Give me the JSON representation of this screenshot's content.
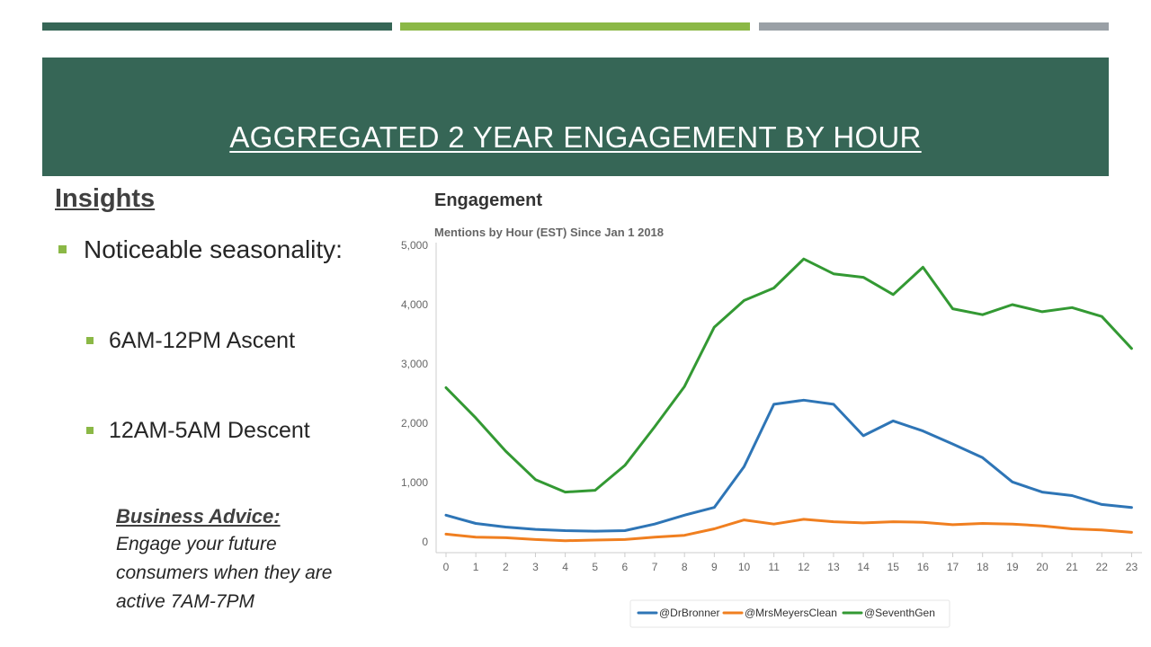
{
  "header": {
    "title": "AGGREGATED 2 YEAR ENGAGEMENT BY HOUR",
    "accent_colors": [
      "#366656",
      "#8bb846",
      "#9aa0a6"
    ]
  },
  "insights": {
    "heading": "Insights",
    "bullets": [
      {
        "text": "Noticeable seasonality:",
        "level": 1
      },
      {
        "text": "6AM-12PM Ascent",
        "level": 2
      },
      {
        "text": "12AM-5AM Descent",
        "level": 2
      }
    ],
    "advice": {
      "heading": "Business Advice:",
      "lines": [
        "Engage your future",
        "consumers when they are",
        "active 7AM-7PM"
      ]
    }
  },
  "chart_data": {
    "type": "line",
    "title": "Engagement",
    "subtitle": "Mentions by Hour (EST) Since Jan 1 2018",
    "xlabel": "",
    "ylabel": "",
    "x": [
      0,
      1,
      2,
      3,
      4,
      5,
      6,
      7,
      8,
      9,
      10,
      11,
      12,
      13,
      14,
      15,
      16,
      17,
      18,
      19,
      20,
      21,
      22,
      23
    ],
    "ylim": [
      0,
      5000
    ],
    "yticks": [
      0,
      1000,
      2000,
      3000,
      4000,
      5000
    ],
    "ytick_labels": [
      "0",
      "1,000",
      "2,000",
      "3,000",
      "4,000",
      "5,000"
    ],
    "grid": false,
    "legend_position": "bottom",
    "series": [
      {
        "name": "@DrBronner",
        "color": "#2e75b6",
        "values": [
          450,
          310,
          250,
          210,
          190,
          180,
          190,
          300,
          450,
          580,
          1270,
          2320,
          2390,
          2320,
          1790,
          2040,
          1870,
          1650,
          1420,
          1010,
          840,
          780,
          630,
          580
        ]
      },
      {
        "name": "@MrsMeyersClean",
        "color": "#f07f20",
        "values": [
          130,
          80,
          70,
          40,
          20,
          30,
          40,
          80,
          110,
          220,
          370,
          300,
          380,
          340,
          320,
          340,
          330,
          290,
          310,
          300,
          270,
          220,
          200,
          160
        ]
      },
      {
        "name": "@SeventhGen",
        "color": "#339933",
        "values": [
          2600,
          2090,
          1530,
          1050,
          840,
          870,
          1290,
          1940,
          2620,
          3620,
          4070,
          4280,
          4770,
          4520,
          4460,
          4170,
          4630,
          3930,
          3830,
          4000,
          3880,
          3950,
          3800,
          3260
        ]
      }
    ]
  }
}
